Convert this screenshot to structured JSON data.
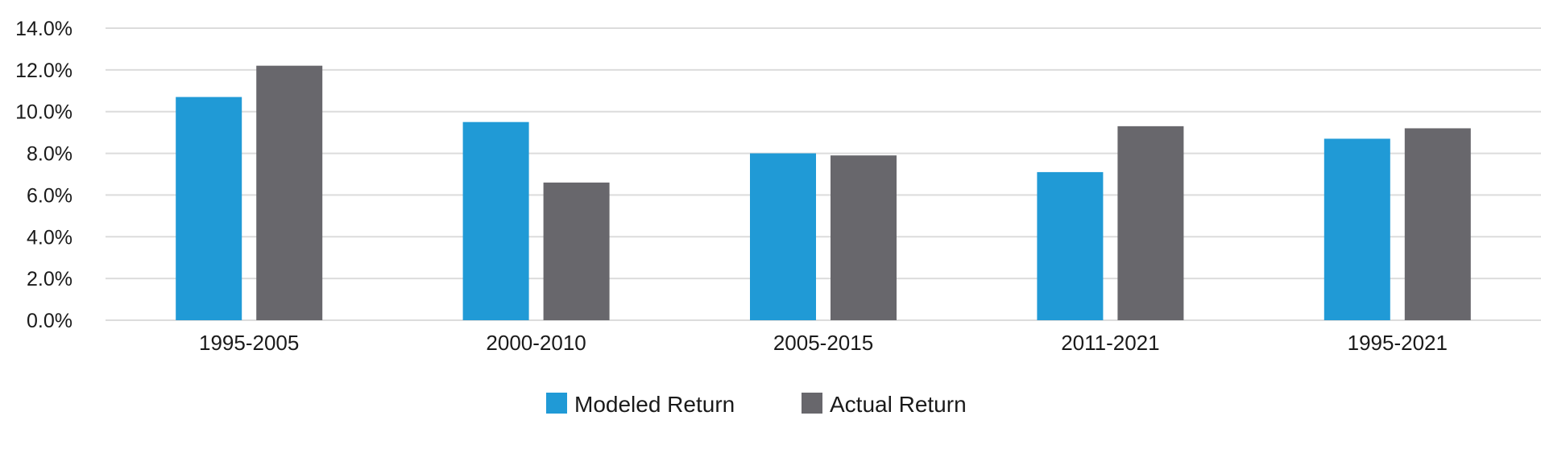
{
  "chart_data": {
    "type": "bar",
    "title": "",
    "xlabel": "",
    "ylabel": "",
    "categories": [
      "1995-2005",
      "2000-2010",
      "2005-2015",
      "2011-2021",
      "1995-2021"
    ],
    "series": [
      {
        "name": "Modeled Return",
        "color": "#209AD6",
        "values": [
          10.7,
          9.5,
          8.0,
          7.1,
          8.7
        ]
      },
      {
        "name": "Actual Return",
        "color": "#68676C",
        "values": [
          12.2,
          6.6,
          7.9,
          9.3,
          9.2
        ]
      }
    ],
    "ylim": [
      0,
      14
    ],
    "yticks": [
      0,
      2,
      4,
      6,
      8,
      10,
      12,
      14
    ],
    "ytick_labels": [
      "0.0%",
      "2.0%",
      "4.0%",
      "6.0%",
      "8.0%",
      "10.0%",
      "12.0%",
      "14.0%"
    ],
    "grid": true,
    "legend": "bottom-center"
  }
}
